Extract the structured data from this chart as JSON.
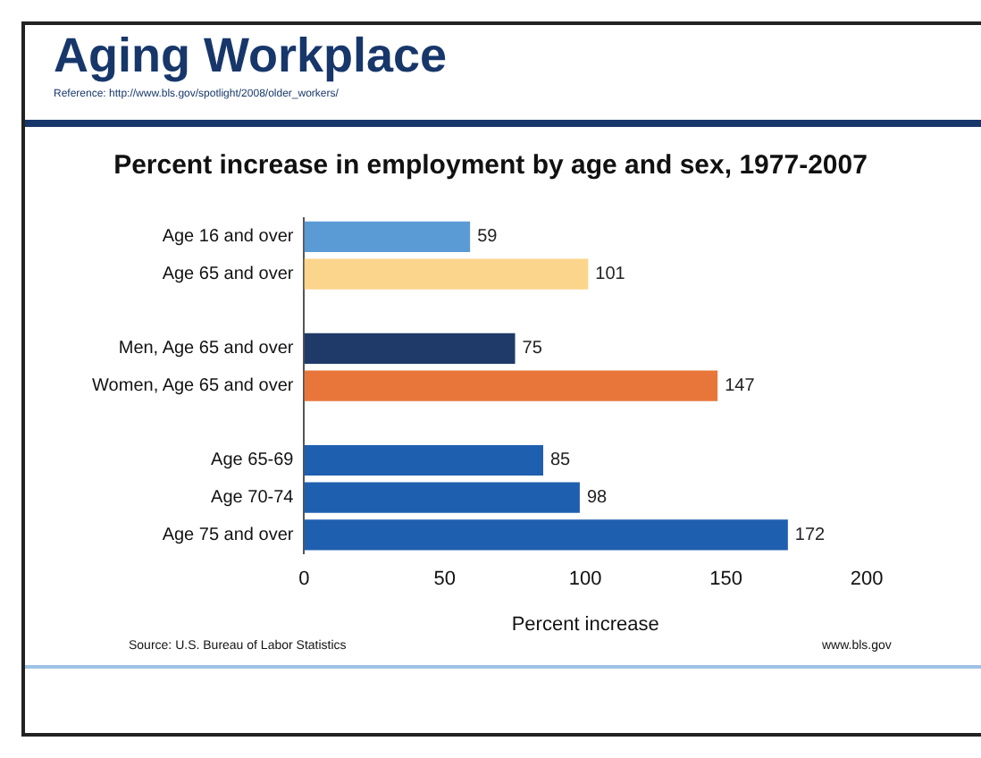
{
  "chart_data": {
    "type": "bar",
    "orientation": "horizontal",
    "title": "Aging Workplace",
    "subtitle": "Percent increase in employment by age and sex, 1977-2007",
    "xlabel": "Percent increase",
    "categories": [
      "Age 16 and over",
      "Age 65 and over",
      null,
      "Men, Age 65 and over",
      "Women, Age 65 and over",
      null,
      "Age 65-69",
      "Age 70-74",
      "Age 75 and over"
    ],
    "values": [
      59,
      101,
      null,
      75,
      147,
      null,
      85,
      98,
      172
    ],
    "colors": [
      "#5b9bd5",
      "#fcd58c",
      "#ffffff",
      "#1f3a68",
      "#e8763a",
      "#ffffff",
      "#1f5fb0",
      "#1f5fb0",
      "#1f5fb0"
    ],
    "xlim": [
      0,
      200
    ],
    "xticks": [
      0,
      50,
      100,
      150,
      200
    ],
    "grid": false,
    "legend": false,
    "data_labels": true,
    "annotations": [
      "Reference: http://www.bls.gov/spotlight/2008/older_workers/",
      "Source: U.S. Bureau of Labor Statistics",
      "www.bls.gov"
    ]
  }
}
